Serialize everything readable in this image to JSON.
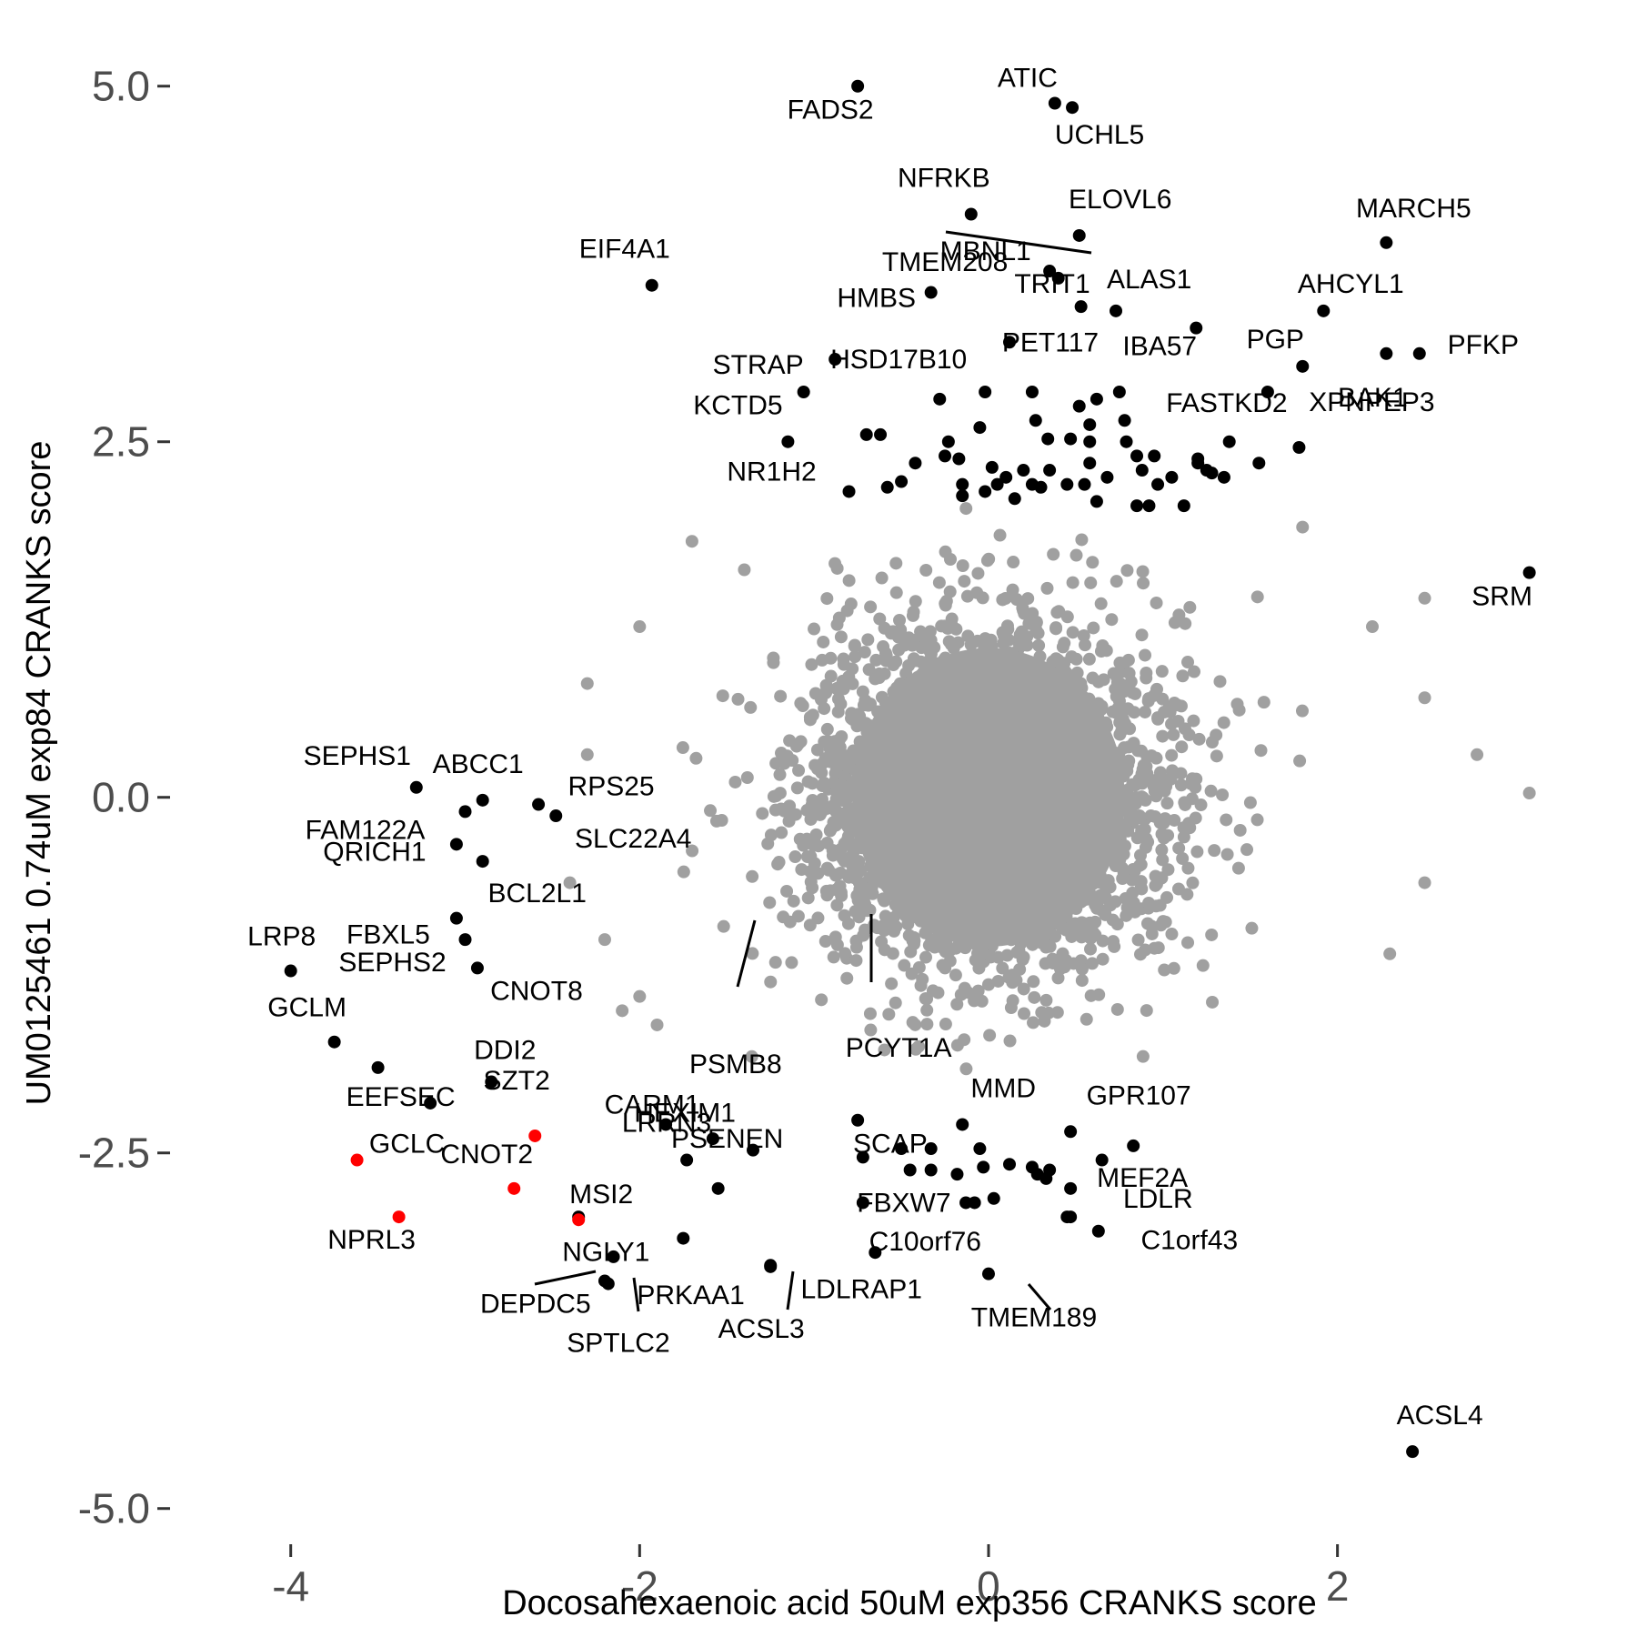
{
  "chart_data": {
    "type": "scatter",
    "xlabel": "Docosahexaenoic acid 50uM exp356 CRANKS score",
    "ylabel": "UM0125461 0.74uM exp84 CRANKS score",
    "xlim": [
      -4.65,
      3.3
    ],
    "ylim": [
      -5.2,
      5.35
    ],
    "x_ticks": [
      -4,
      -2,
      0,
      2
    ],
    "x_tick_labels": [
      "-4",
      "-2",
      "0",
      "2"
    ],
    "y_ticks": [
      -5,
      -2.5,
      0,
      2.5,
      5
    ],
    "y_tick_labels": [
      "-5.0",
      "-2.5",
      "0.0",
      "2.5",
      "5.0"
    ],
    "grid": false,
    "colors": {
      "background": "#c8c8c8",
      "highlight": "#000000",
      "special": "#ff0000",
      "axis_text": "#4d4d4d"
    },
    "background_cloud": {
      "description_color": "#a0a0a0",
      "center": [
        0,
        0
      ],
      "count_core": 3000,
      "spread": [
        0.52,
        0.62
      ],
      "outliers": [
        [
          3.1,
          0.03
        ],
        [
          2.8,
          0.3
        ],
        [
          2.5,
          1.4
        ],
        [
          2.5,
          0.7
        ],
        [
          2.5,
          -0.6
        ],
        [
          2.3,
          -1.1
        ],
        [
          2.2,
          1.2
        ],
        [
          1.8,
          1.9
        ],
        [
          -1.7,
          1.8
        ],
        [
          -1.4,
          1.6
        ],
        [
          -2.0,
          1.2
        ],
        [
          -2.3,
          0.8
        ],
        [
          -2.3,
          0.3
        ],
        [
          -2.4,
          -0.6
        ],
        [
          -2.2,
          -1.0
        ],
        [
          -2.0,
          -1.4
        ],
        [
          -1.9,
          -1.6
        ],
        [
          -2.1,
          -1.5
        ]
      ]
    },
    "series": [
      {
        "name": "labeled",
        "color": "#000000",
        "points": [
          {
            "x": -0.75,
            "y": 5.0,
            "label": "FADS2"
          },
          {
            "x": 0.38,
            "y": 4.88,
            "label": "ATIC"
          },
          {
            "x": 0.48,
            "y": 4.85,
            "label": "UCHL5"
          },
          {
            "x": -0.1,
            "y": 4.1,
            "label": "NFRKB"
          },
          {
            "x": 0.52,
            "y": 3.95,
            "label": "ELOVL6"
          },
          {
            "x": 2.28,
            "y": 3.9,
            "label": "MARCH5"
          },
          {
            "x": 0.4,
            "y": 3.65,
            "label": "MBNL1"
          },
          {
            "x": -1.93,
            "y": 3.6,
            "label": "EIF4A1"
          },
          {
            "x": -0.33,
            "y": 3.55,
            "label": "HMBS"
          },
          {
            "x": 0.53,
            "y": 3.45,
            "label": "ALAS1"
          },
          {
            "x": 0.73,
            "y": 3.42,
            "label": "TRIT1"
          },
          {
            "x": 1.92,
            "y": 3.42,
            "label": "AHCYL1"
          },
          {
            "x": 1.19,
            "y": 3.3,
            "label": "IBA57"
          },
          {
            "x": 0.12,
            "y": 3.2,
            "label": "PET117"
          },
          {
            "x": 2.28,
            "y": 3.12,
            "label": "BAK1"
          },
          {
            "x": 2.47,
            "y": 3.12,
            "label": "PFKP"
          },
          {
            "x": -0.88,
            "y": 3.08,
            "label": "HSD17B10"
          },
          {
            "x": 1.8,
            "y": 3.03,
            "label": "PGP"
          },
          {
            "x": -1.06,
            "y": 2.85,
            "label": "STRAP"
          },
          {
            "x": 1.6,
            "y": 2.85,
            "label": "FASTKD2"
          },
          {
            "x": -1.15,
            "y": 2.5,
            "label": "KCTD5"
          },
          {
            "x": 1.78,
            "y": 2.46,
            "label": "XPNPEP3"
          },
          {
            "x": -0.8,
            "y": 2.15,
            "label": "NR1H2"
          },
          {
            "x": 3.1,
            "y": 1.58,
            "label": "SRM"
          },
          {
            "x": -3.28,
            "y": 0.07,
            "label": "SEPHS1"
          },
          {
            "x": -2.9,
            "y": -0.02,
            "label": "ABCC1"
          },
          {
            "x": -2.58,
            "y": -0.05,
            "label": "RPS25"
          },
          {
            "x": -2.48,
            "y": -0.13,
            "label": "SLC22A4"
          },
          {
            "x": -3.0,
            "y": -0.1,
            "label": "FAM122A"
          },
          {
            "x": -3.05,
            "y": -0.33,
            "label": "QRICH1"
          },
          {
            "x": -2.9,
            "y": -0.45,
            "label": "BCL2L1"
          },
          {
            "x": -3.05,
            "y": -0.85,
            "label": "FBXL5"
          },
          {
            "x": -3.0,
            "y": -1.0,
            "label": "SEPHS2"
          },
          {
            "x": -2.93,
            "y": -1.2,
            "label": "CNOT8"
          },
          {
            "x": -4.0,
            "y": -1.22,
            "label": "LRP8"
          },
          {
            "x": -3.75,
            "y": -1.72,
            "label": "GCLM"
          },
          {
            "x": -3.5,
            "y": -1.9,
            "label": "EEFSEC"
          },
          {
            "x": -2.85,
            "y": -2.0,
            "label": "DDI2"
          },
          {
            "x": -3.2,
            "y": -2.15,
            "label": "SZT2"
          },
          {
            "x": -2.35,
            "y": -2.95,
            "label": "MSI2"
          },
          {
            "x": -1.85,
            "y": -2.3,
            "label": "CARM1"
          },
          {
            "x": -1.58,
            "y": -2.4,
            "label": "PSMB8"
          },
          {
            "x": -0.75,
            "y": -2.27,
            "label": "PCYT1A"
          },
          {
            "x": -1.35,
            "y": -2.48,
            "label": "LRRN3"
          },
          {
            "x": -1.73,
            "y": -2.55,
            "label": "HEXIM1"
          },
          {
            "x": -1.55,
            "y": -2.75,
            "label": "PSENEN"
          },
          {
            "x": -0.72,
            "y": -2.53,
            "label": "SCAP"
          },
          {
            "x": -0.15,
            "y": -2.3,
            "label": "MMD"
          },
          {
            "x": 0.47,
            "y": -2.35,
            "label": "GPR107"
          },
          {
            "x": 0.83,
            "y": -2.45,
            "label": "MEF2A"
          },
          {
            "x": 0.63,
            "y": -3.05,
            "label": "C1orf43"
          },
          {
            "x": -0.72,
            "y": -2.85,
            "label": "FBXW7"
          },
          {
            "x": -1.75,
            "y": -3.1,
            "label": "NGLY1"
          },
          {
            "x": -0.65,
            "y": -3.2,
            "label": "C10orf76"
          },
          {
            "x": -2.15,
            "y": -3.23,
            "label": "PRKAA1"
          },
          {
            "x": -2.18,
            "y": -3.42,
            "label": "DEPDC5"
          },
          {
            "x": -2.2,
            "y": -3.4,
            "label": "SPTLC2"
          },
          {
            "x": -1.25,
            "y": -3.3,
            "label": "ACSL3"
          },
          {
            "x": -1.25,
            "y": -3.29,
            "label": "LDLRAP1"
          },
          {
            "x": 0.0,
            "y": -3.35,
            "label": "TMEM189"
          },
          {
            "x": 0.45,
            "y": -2.95,
            "label": "LDLR"
          },
          {
            "x": 2.43,
            "y": -4.6,
            "label": "ACSL4"
          },
          {
            "x": 0.35,
            "y": 3.7,
            "label": "TMEM208"
          }
        ]
      },
      {
        "name": "special",
        "color": "#ff0000",
        "points": [
          {
            "x": -3.62,
            "y": -2.55,
            "label": "GCLC"
          },
          {
            "x": -3.38,
            "y": -2.95,
            "label": "NPRL3"
          },
          {
            "x": -2.72,
            "y": -2.75,
            "label": "CNOT2"
          },
          {
            "x": -2.6,
            "y": -2.38,
            "label": ""
          },
          {
            "x": -2.35,
            "y": -2.97,
            "label": ""
          }
        ]
      }
    ],
    "extra_black_points": [
      [
        -0.28,
        2.8
      ],
      [
        -0.02,
        2.85
      ],
      [
        0.25,
        2.85
      ],
      [
        0.52,
        2.75
      ],
      [
        0.62,
        2.8
      ],
      [
        0.75,
        2.85
      ],
      [
        -0.7,
        2.55
      ],
      [
        -0.62,
        2.55
      ],
      [
        -0.42,
        2.35
      ],
      [
        -0.23,
        2.5
      ],
      [
        0.34,
        2.52
      ],
      [
        0.47,
        2.52
      ],
      [
        0.58,
        2.62
      ],
      [
        0.79,
        2.5
      ],
      [
        0.85,
        2.4
      ],
      [
        -0.05,
        2.6
      ],
      [
        -0.17,
        2.38
      ],
      [
        0.02,
        2.32
      ],
      [
        0.2,
        2.3
      ],
      [
        0.35,
        2.3
      ],
      [
        0.58,
        2.35
      ],
      [
        0.68,
        2.25
      ],
      [
        0.88,
        2.3
      ],
      [
        1.05,
        2.25
      ],
      [
        1.2,
        2.35
      ],
      [
        1.28,
        2.28
      ],
      [
        1.38,
        2.5
      ],
      [
        1.35,
        2.25
      ],
      [
        -0.58,
        2.18
      ],
      [
        -0.5,
        2.22
      ],
      [
        -0.15,
        2.2
      ],
      [
        0.1,
        2.25
      ],
      [
        0.25,
        2.2
      ],
      [
        0.45,
        2.2
      ],
      [
        0.55,
        2.2
      ],
      [
        0.85,
        2.05
      ],
      [
        0.97,
        2.2
      ],
      [
        1.12,
        2.05
      ],
      [
        -0.15,
        2.12
      ],
      [
        -0.02,
        2.15
      ],
      [
        0.05,
        2.2
      ],
      [
        0.15,
        2.1
      ],
      [
        0.3,
        2.18
      ],
      [
        0.62,
        2.08
      ],
      [
        0.92,
        2.05
      ],
      [
        1.2,
        2.38
      ],
      [
        -0.25,
        2.4
      ],
      [
        0.27,
        2.65
      ],
      [
        0.58,
        2.5
      ],
      [
        0.78,
        2.65
      ],
      [
        0.95,
        2.4
      ],
      [
        1.55,
        2.35
      ],
      [
        1.25,
        2.3
      ],
      [
        -0.5,
        -2.47
      ],
      [
        -0.33,
        -2.47
      ],
      [
        -0.05,
        -2.47
      ],
      [
        -0.33,
        -2.62
      ],
      [
        -0.18,
        -2.65
      ],
      [
        -0.03,
        -2.6
      ],
      [
        0.12,
        -2.58
      ],
      [
        0.28,
        -2.65
      ],
      [
        0.35,
        -2.62
      ],
      [
        -0.08,
        -2.85
      ],
      [
        0.03,
        -2.82
      ],
      [
        -0.13,
        -2.85
      ],
      [
        0.33,
        -2.68
      ],
      [
        0.47,
        -2.75
      ],
      [
        0.47,
        -2.95
      ],
      [
        0.25,
        -2.6
      ],
      [
        -0.45,
        -2.62
      ],
      [
        0.65,
        -2.55
      ]
    ]
  }
}
